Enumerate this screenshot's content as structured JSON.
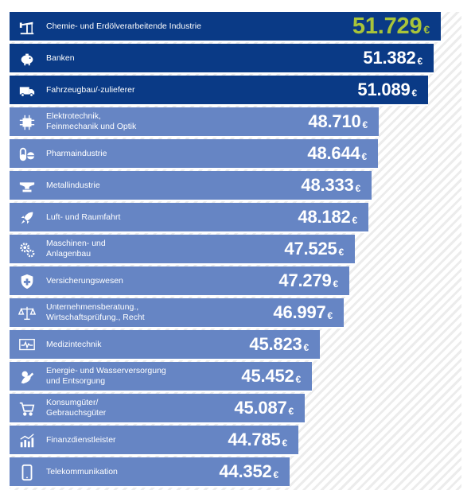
{
  "chart_data": {
    "type": "bar",
    "orientation": "horizontal",
    "currency": "€",
    "categories": [
      "Chemie- und Erdölverarbeitende Industrie",
      "Banken",
      "Fahrzeugbau/-zulieferer",
      "Elektrotechnik,\nFeinmechanik und Optik",
      "Pharmaindustrie",
      "Metallindustrie",
      "Luft- und Raumfahrt",
      "Maschinen- und\nAnlagenbau",
      "Versicherungswesen",
      "Unternehmensberatung.,\nWirtschaftsprüfung., Recht",
      "Medizintechnik",
      "Energie- und Wasserversorgung\nund Entsorgung",
      "Konsumgüter/\nGebrauchsgüter",
      "Finanzdienstleister",
      "Telekommunikation"
    ],
    "values": [
      51729,
      51382,
      51089,
      48710,
      48644,
      48333,
      48182,
      47525,
      47279,
      46997,
      45823,
      45452,
      45087,
      44785,
      44352
    ],
    "value_labels": [
      "51.729",
      "51.382",
      "51.089",
      "48.710",
      "48.644",
      "48.333",
      "48.182",
      "47.525",
      "47.279",
      "46.997",
      "45.823",
      "45.452",
      "45.087",
      "44.785",
      "44.352"
    ],
    "icons": [
      "pump-jack-icon",
      "piggy-bank-icon",
      "truck-icon",
      "chip-icon",
      "pills-icon",
      "anvil-icon",
      "rocket-icon",
      "gears-icon",
      "shield-cross-icon",
      "scales-icon",
      "ecg-monitor-icon",
      "plug-icon",
      "shopping-cart-icon",
      "growth-chart-icon",
      "smartphone-icon"
    ],
    "colors": {
      "top": "#0a3a86",
      "rest": "#6685c4",
      "highlight_value": "#a8c43a"
    }
  }
}
